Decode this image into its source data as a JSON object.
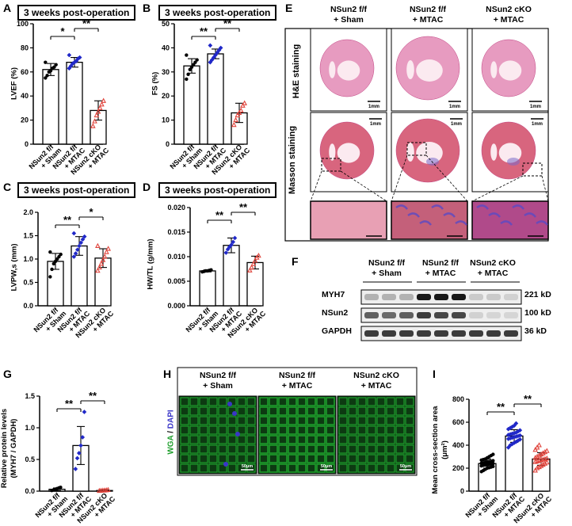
{
  "panel_letters": {
    "A": "A",
    "B": "B",
    "C": "C",
    "D": "D",
    "E": "E",
    "F": "F",
    "G": "G",
    "H": "H",
    "I": "I"
  },
  "timepoint": "3 weeks post-operation",
  "groups": [
    "NSun2 f/f\n+ Sham",
    "NSun2 f/f\n+ MTAC",
    "NSun2 cKO\n+ MTAC"
  ],
  "group_lines": [
    [
      "NSun2 f/f",
      "+ Sham"
    ],
    [
      "NSun2 f/f",
      "+ MTAC"
    ],
    [
      "NSun2 cKO",
      "+ MTAC"
    ]
  ],
  "sig": {
    "star1": "*",
    "star2": "**"
  },
  "colors": {
    "sham": "#000000",
    "mtac": "#2028c8",
    "cko": "#e0443c",
    "wga": "#1e9e2c",
    "dapi": "#3a36c8"
  },
  "chart_data": [
    {
      "panel": "A",
      "type": "bar",
      "ylabel": "LVEF (%)",
      "ylim": [
        0,
        100
      ],
      "yticks": [
        0,
        20,
        40,
        60,
        80,
        100
      ],
      "categories": [
        "NSun2 f/f + Sham",
        "NSun2 f/f + MTAC",
        "NSun2 cKO + MTAC"
      ],
      "values": [
        62,
        68,
        28
      ],
      "err": [
        5,
        4,
        8
      ],
      "points": [
        [
          55,
          57,
          60,
          61,
          63,
          64,
          66,
          68
        ],
        [
          63,
          65,
          67,
          68,
          69,
          71,
          72,
          74
        ],
        [
          15,
          19,
          24,
          27,
          30,
          33,
          36
        ]
      ],
      "sig": [
        {
          "pair": [
            0,
            1
          ],
          "label": "*"
        },
        {
          "pair": [
            1,
            2
          ],
          "label": "**"
        }
      ]
    },
    {
      "panel": "B",
      "type": "bar",
      "ylabel": "FS (%)",
      "ylim": [
        0,
        50
      ],
      "yticks": [
        0,
        10,
        20,
        30,
        40,
        50
      ],
      "categories": [
        "NSun2 f/f + Sham",
        "NSun2 f/f + MTAC",
        "NSun2 cKO + MTAC"
      ],
      "values": [
        32.5,
        37.5,
        13
      ],
      "err": [
        3,
        2,
        4
      ],
      "points": [
        [
          27,
          29,
          31,
          32,
          33,
          34,
          35,
          37
        ],
        [
          34,
          35,
          36,
          37,
          38,
          39,
          40,
          41
        ],
        [
          8,
          10,
          12,
          13,
          14,
          16,
          17
        ]
      ],
      "sig": [
        {
          "pair": [
            0,
            1
          ],
          "label": "**"
        },
        {
          "pair": [
            1,
            2
          ],
          "label": "**"
        }
      ]
    },
    {
      "panel": "C",
      "type": "bar",
      "ylabel": "LVPW,s (mm)",
      "ylim": [
        0,
        2.0
      ],
      "yticks": [
        0.0,
        0.5,
        1.0,
        1.5,
        2.0
      ],
      "categories": [
        "NSun2 f/f + Sham",
        "NSun2 f/f + MTAC",
        "NSun2 cKO + MTAC"
      ],
      "values": [
        0.95,
        1.28,
        1.02
      ],
      "err": [
        0.17,
        0.2,
        0.2
      ],
      "points": [
        [
          0.62,
          0.78,
          0.9,
          0.95,
          1.0,
          1.05,
          1.1,
          1.15
        ],
        [
          1.05,
          1.12,
          1.2,
          1.28,
          1.35,
          1.42,
          1.48,
          1.55
        ],
        [
          0.75,
          0.82,
          0.9,
          0.98,
          1.05,
          1.15,
          1.22,
          1.28
        ]
      ],
      "sig": [
        {
          "pair": [
            0,
            1
          ],
          "label": "**"
        },
        {
          "pair": [
            1,
            2
          ],
          "label": "*"
        }
      ]
    },
    {
      "panel": "D",
      "type": "bar",
      "ylabel": "HW/TL (g/mm)",
      "ylim": [
        0,
        0.02
      ],
      "yticks": [
        0.0,
        0.005,
        0.01,
        0.015,
        0.02
      ],
      "categories": [
        "NSun2 f/f + Sham",
        "NSun2 f/f + MTAC",
        "NSun2 cKO + MTAC"
      ],
      "values": [
        0.0071,
        0.0123,
        0.0088
      ],
      "err": [
        0.0002,
        0.0015,
        0.0013
      ],
      "points": [
        [
          0.0069,
          0.007,
          0.0071,
          0.0071,
          0.0072,
          0.0073
        ],
        [
          0.0108,
          0.0115,
          0.012,
          0.0124,
          0.013,
          0.0138
        ],
        [
          0.0072,
          0.0078,
          0.0085,
          0.0092,
          0.0098,
          0.0102
        ]
      ],
      "sig": [
        {
          "pair": [
            0,
            1
          ],
          "label": "**"
        },
        {
          "pair": [
            1,
            2
          ],
          "label": "**"
        }
      ]
    },
    {
      "panel": "G",
      "type": "bar",
      "ylabel": "Relative protein levels\n(MYH7 / GAPDH)",
      "ylim": [
        0,
        1.5
      ],
      "yticks": [
        0.0,
        0.5,
        1.0,
        1.5
      ],
      "categories": [
        "NSun2 f/f + Sham",
        "NSun2 f/f + MTAC",
        "NSun2 cKO + MTAC"
      ],
      "values": [
        0.03,
        0.72,
        0.01
      ],
      "err": [
        0.02,
        0.3,
        0.01
      ],
      "points": [
        [
          0.01,
          0.02,
          0.03,
          0.04,
          0.05,
          0.06
        ],
        [
          0.35,
          0.52,
          0.6,
          0.72,
          0.85,
          1.25
        ],
        [
          0.005,
          0.008,
          0.01,
          0.012,
          0.015,
          0.02
        ]
      ],
      "sig": [
        {
          "pair": [
            0,
            1
          ],
          "label": "**"
        },
        {
          "pair": [
            1,
            2
          ],
          "label": "**"
        }
      ]
    },
    {
      "panel": "I",
      "type": "bar",
      "ylabel": "Mean cross-section area\n(μm²)",
      "ylim": [
        0,
        800
      ],
      "yticks": [
        0,
        200,
        400,
        600,
        800
      ],
      "categories": [
        "NSun2 f/f + Sham",
        "NSun2 f/f + MTAC",
        "NSun2 cKO + MTAC"
      ],
      "values": [
        240,
        480,
        280
      ],
      "err": [
        40,
        55,
        55
      ],
      "points": [
        [
          170,
          180,
          190,
          200,
          205,
          210,
          215,
          220,
          225,
          228,
          230,
          235,
          238,
          240,
          243,
          246,
          250,
          255,
          258,
          260,
          265,
          270,
          275,
          280,
          290,
          300,
          310,
          320
        ],
        [
          380,
          400,
          410,
          420,
          430,
          440,
          450,
          455,
          460,
          465,
          470,
          475,
          480,
          485,
          490,
          495,
          500,
          505,
          510,
          520,
          530,
          540,
          550,
          560,
          570,
          590
        ],
        [
          180,
          200,
          210,
          220,
          230,
          240,
          250,
          255,
          260,
          265,
          270,
          275,
          280,
          285,
          290,
          300,
          310,
          320,
          330,
          340,
          350,
          360,
          380,
          400
        ]
      ],
      "sig": [
        {
          "pair": [
            0,
            1
          ],
          "label": "**"
        },
        {
          "pair": [
            1,
            2
          ],
          "label": "**"
        }
      ]
    }
  ],
  "panelE": {
    "rows": [
      "H&E staining",
      "Masson staining"
    ],
    "scale": "1mm"
  },
  "panelF": {
    "bands": [
      {
        "name": "MYH7",
        "kd": "221 kD"
      },
      {
        "name": "NSun2",
        "kd": "100 kD"
      },
      {
        "name": "GAPDH",
        "kd": "36 kD"
      }
    ]
  },
  "panelH": {
    "stain_wga": "WGA",
    "stain_sep": " / ",
    "stain_dapi": "DAPI",
    "scale": "50μm"
  }
}
